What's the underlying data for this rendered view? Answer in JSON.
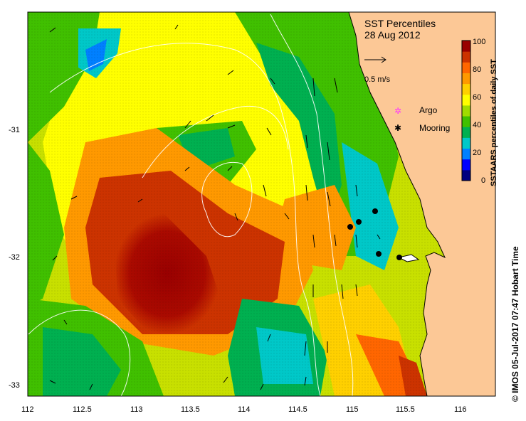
{
  "title": "SST Percentiles",
  "date": "28 Aug 2012",
  "velocity_scale": "0.5 m/s",
  "legend_items": [
    {
      "label": "Argo",
      "marker": "open star",
      "color": "#ff33ff"
    },
    {
      "label": "Mooring",
      "marker": "filled star",
      "color": "#000000"
    }
  ],
  "colorbar": {
    "label": "SSTAARS percentiles of daily SST",
    "ticks": [
      "100",
      "80",
      "60",
      "40",
      "20",
      "0"
    ],
    "min": 0,
    "max": 100,
    "colors": [
      "#000080",
      "#0000ff",
      "#0080ff",
      "#00c8c8",
      "#00b050",
      "#40c000",
      "#a0dc00",
      "#ffff00",
      "#ffd000",
      "#ff9900",
      "#ff6600",
      "#cc3300",
      "#990000"
    ]
  },
  "axes": {
    "x_ticks": [
      "112",
      "112.5",
      "113",
      "113.5",
      "114",
      "114.5",
      "115",
      "115.5",
      "116"
    ],
    "y_ticks": [
      "-31",
      "-32",
      "-33"
    ],
    "x_range": [
      112,
      116.3
    ],
    "y_range": [
      -33.1,
      -30.1
    ]
  },
  "credit": "© IMOS 05-Jul-2017 07:47 Hobart Time",
  "mooring_positions": [
    [
      115.2,
      -31.65
    ],
    [
      115.05,
      -31.73
    ],
    [
      114.95,
      -31.77
    ],
    [
      115.25,
      -31.99
    ],
    [
      115.42,
      -32.01
    ]
  ],
  "colors": {
    "land": "#fcc896",
    "background": "#ffffff"
  }
}
